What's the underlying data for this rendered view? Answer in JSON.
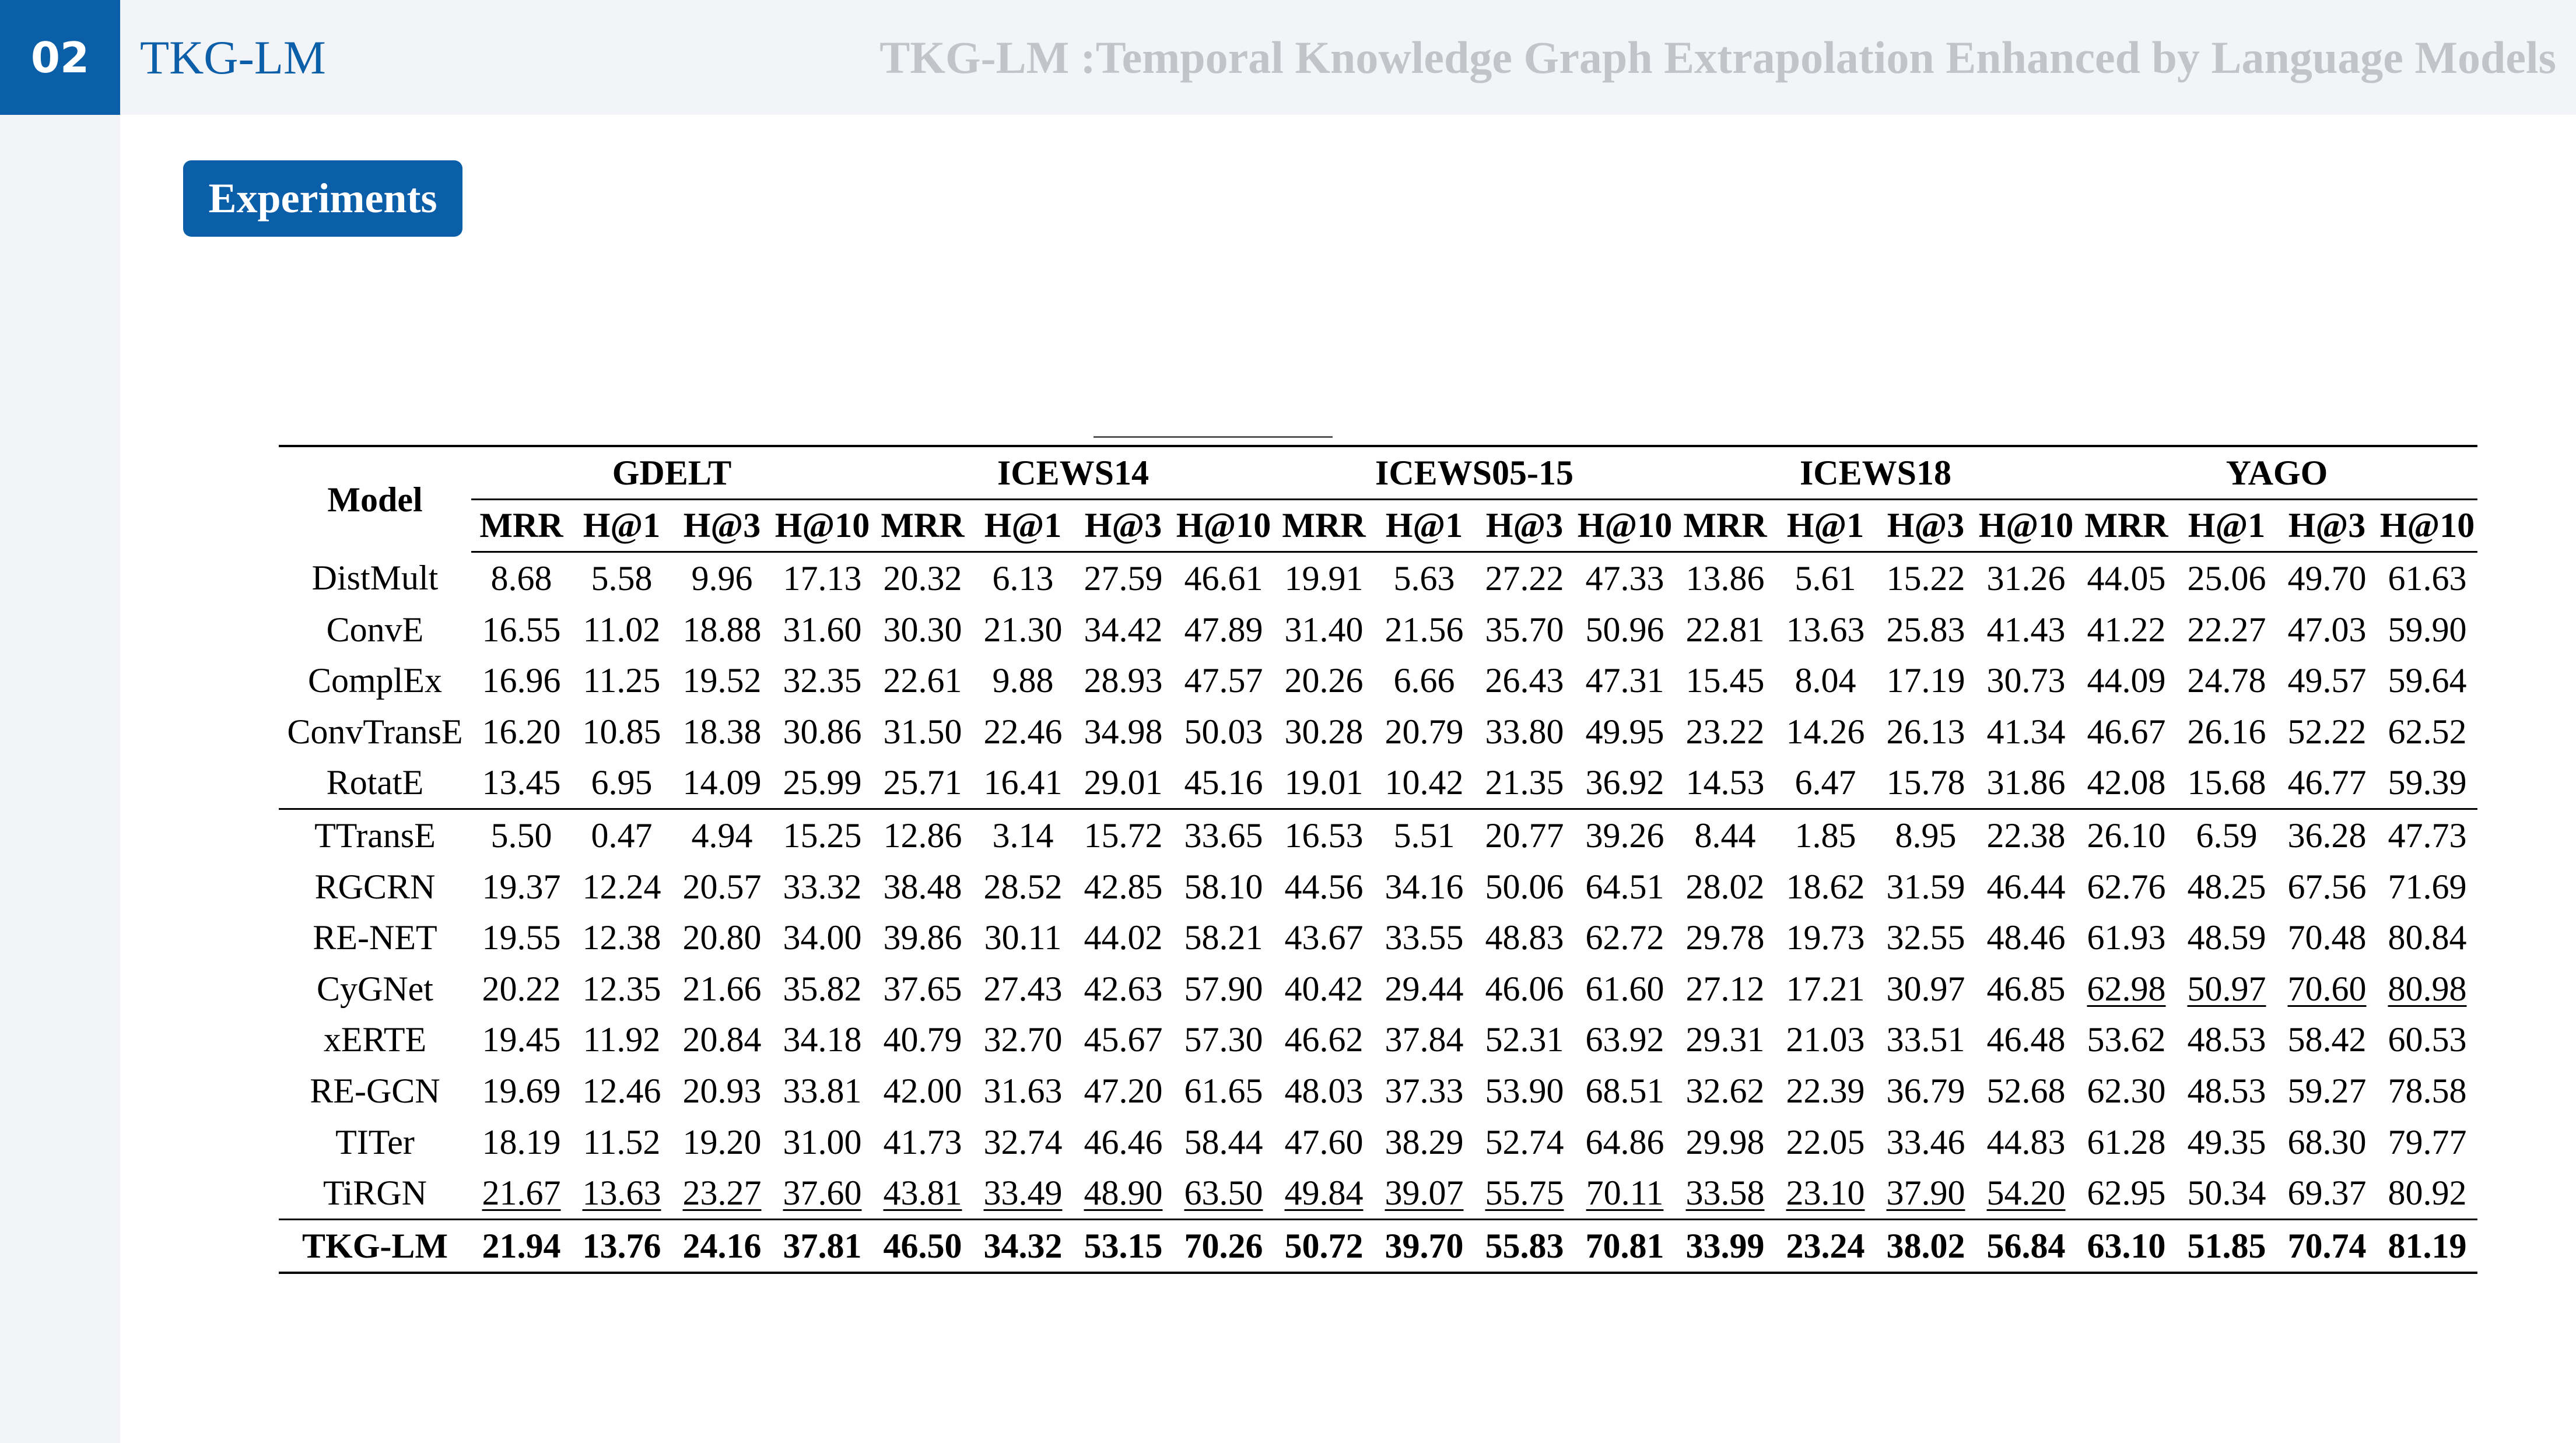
{
  "header": {
    "section_number": "02",
    "short_title": "TKG-LM",
    "long_title": "TKG-LM :Temporal Knowledge Graph Extrapolation Enhanced by Language Models"
  },
  "section_badge": "Experiments",
  "table": {
    "model_header": "Model",
    "datasets": [
      "GDELT",
      "ICEWS14",
      "ICEWS05-15",
      "ICEWS18",
      "YAGO"
    ],
    "metrics": [
      "MRR",
      "H@1",
      "H@3",
      "H@10"
    ],
    "groups": [
      {
        "rows": [
          {
            "model": "DistMult",
            "values": [
              "8.68",
              "5.58",
              "9.96",
              "17.13",
              "20.32",
              "6.13",
              "27.59",
              "46.61",
              "19.91",
              "5.63",
              "27.22",
              "47.33",
              "13.86",
              "5.61",
              "15.22",
              "31.26",
              "44.05",
              "25.06",
              "49.70",
              "61.63"
            ]
          },
          {
            "model": "ConvE",
            "values": [
              "16.55",
              "11.02",
              "18.88",
              "31.60",
              "30.30",
              "21.30",
              "34.42",
              "47.89",
              "31.40",
              "21.56",
              "35.70",
              "50.96",
              "22.81",
              "13.63",
              "25.83",
              "41.43",
              "41.22",
              "22.27",
              "47.03",
              "59.90"
            ]
          },
          {
            "model": "ComplEx",
            "values": [
              "16.96",
              "11.25",
              "19.52",
              "32.35",
              "22.61",
              "9.88",
              "28.93",
              "47.57",
              "20.26",
              "6.66",
              "26.43",
              "47.31",
              "15.45",
              "8.04",
              "17.19",
              "30.73",
              "44.09",
              "24.78",
              "49.57",
              "59.64"
            ]
          },
          {
            "model": "ConvTransE",
            "values": [
              "16.20",
              "10.85",
              "18.38",
              "30.86",
              "31.50",
              "22.46",
              "34.98",
              "50.03",
              "30.28",
              "20.79",
              "33.80",
              "49.95",
              "23.22",
              "14.26",
              "26.13",
              "41.34",
              "46.67",
              "26.16",
              "52.22",
              "62.52"
            ]
          },
          {
            "model": "RotatE",
            "values": [
              "13.45",
              "6.95",
              "14.09",
              "25.99",
              "25.71",
              "16.41",
              "29.01",
              "45.16",
              "19.01",
              "10.42",
              "21.35",
              "36.92",
              "14.53",
              "6.47",
              "15.78",
              "31.86",
              "42.08",
              "15.68",
              "46.77",
              "59.39"
            ]
          }
        ]
      },
      {
        "rows": [
          {
            "model": "TTransE",
            "values": [
              "5.50",
              "0.47",
              "4.94",
              "15.25",
              "12.86",
              "3.14",
              "15.72",
              "33.65",
              "16.53",
              "5.51",
              "20.77",
              "39.26",
              "8.44",
              "1.85",
              "8.95",
              "22.38",
              "26.10",
              "6.59",
              "36.28",
              "47.73"
            ]
          },
          {
            "model": "RGCRN",
            "values": [
              "19.37",
              "12.24",
              "20.57",
              "33.32",
              "38.48",
              "28.52",
              "42.85",
              "58.10",
              "44.56",
              "34.16",
              "50.06",
              "64.51",
              "28.02",
              "18.62",
              "31.59",
              "46.44",
              "62.76",
              "48.25",
              "67.56",
              "71.69"
            ]
          },
          {
            "model": "RE-NET",
            "values": [
              "19.55",
              "12.38",
              "20.80",
              "34.00",
              "39.86",
              "30.11",
              "44.02",
              "58.21",
              "43.67",
              "33.55",
              "48.83",
              "62.72",
              "29.78",
              "19.73",
              "32.55",
              "48.46",
              "61.93",
              "48.59",
              "70.48",
              "80.84"
            ]
          },
          {
            "model": "CyGNet",
            "values": [
              "20.22",
              "12.35",
              "21.66",
              "35.82",
              "37.65",
              "27.43",
              "42.63",
              "57.90",
              "40.42",
              "29.44",
              "46.06",
              "61.60",
              "27.12",
              "17.21",
              "30.97",
              "46.85",
              "62.98",
              "50.97",
              "70.60",
              "80.98"
            ],
            "underlined": [
              16,
              17,
              18,
              19
            ]
          },
          {
            "model": "xERTE",
            "values": [
              "19.45",
              "11.92",
              "20.84",
              "34.18",
              "40.79",
              "32.70",
              "45.67",
              "57.30",
              "46.62",
              "37.84",
              "52.31",
              "63.92",
              "29.31",
              "21.03",
              "33.51",
              "46.48",
              "53.62",
              "48.53",
              "58.42",
              "60.53"
            ]
          },
          {
            "model": "RE-GCN",
            "values": [
              "19.69",
              "12.46",
              "20.93",
              "33.81",
              "42.00",
              "31.63",
              "47.20",
              "61.65",
              "48.03",
              "37.33",
              "53.90",
              "68.51",
              "32.62",
              "22.39",
              "36.79",
              "52.68",
              "62.30",
              "48.53",
              "59.27",
              "78.58"
            ]
          },
          {
            "model": "TITer",
            "values": [
              "18.19",
              "11.52",
              "19.20",
              "31.00",
              "41.73",
              "32.74",
              "46.46",
              "58.44",
              "47.60",
              "38.29",
              "52.74",
              "64.86",
              "29.98",
              "22.05",
              "33.46",
              "44.83",
              "61.28",
              "49.35",
              "68.30",
              "79.77"
            ]
          },
          {
            "model": "TiRGN",
            "values": [
              "21.67",
              "13.63",
              "23.27",
              "37.60",
              "43.81",
              "33.49",
              "48.90",
              "63.50",
              "49.84",
              "39.07",
              "55.75",
              "70.11",
              "33.58",
              "23.10",
              "37.90",
              "54.20",
              "62.95",
              "50.34",
              "69.37",
              "80.92"
            ],
            "underlined": [
              0,
              1,
              2,
              3,
              4,
              5,
              6,
              7,
              8,
              9,
              10,
              11,
              12,
              13,
              14,
              15
            ]
          }
        ]
      },
      {
        "rows": [
          {
            "model": "TKG-LM",
            "values": [
              "21.94",
              "13.76",
              "24.16",
              "37.81",
              "46.50",
              "34.32",
              "53.15",
              "70.26",
              "50.72",
              "39.70",
              "55.83",
              "70.81",
              "33.99",
              "23.24",
              "38.02",
              "56.84",
              "63.10",
              "51.85",
              "70.74",
              "81.19"
            ],
            "bold": true
          }
        ]
      }
    ]
  }
}
